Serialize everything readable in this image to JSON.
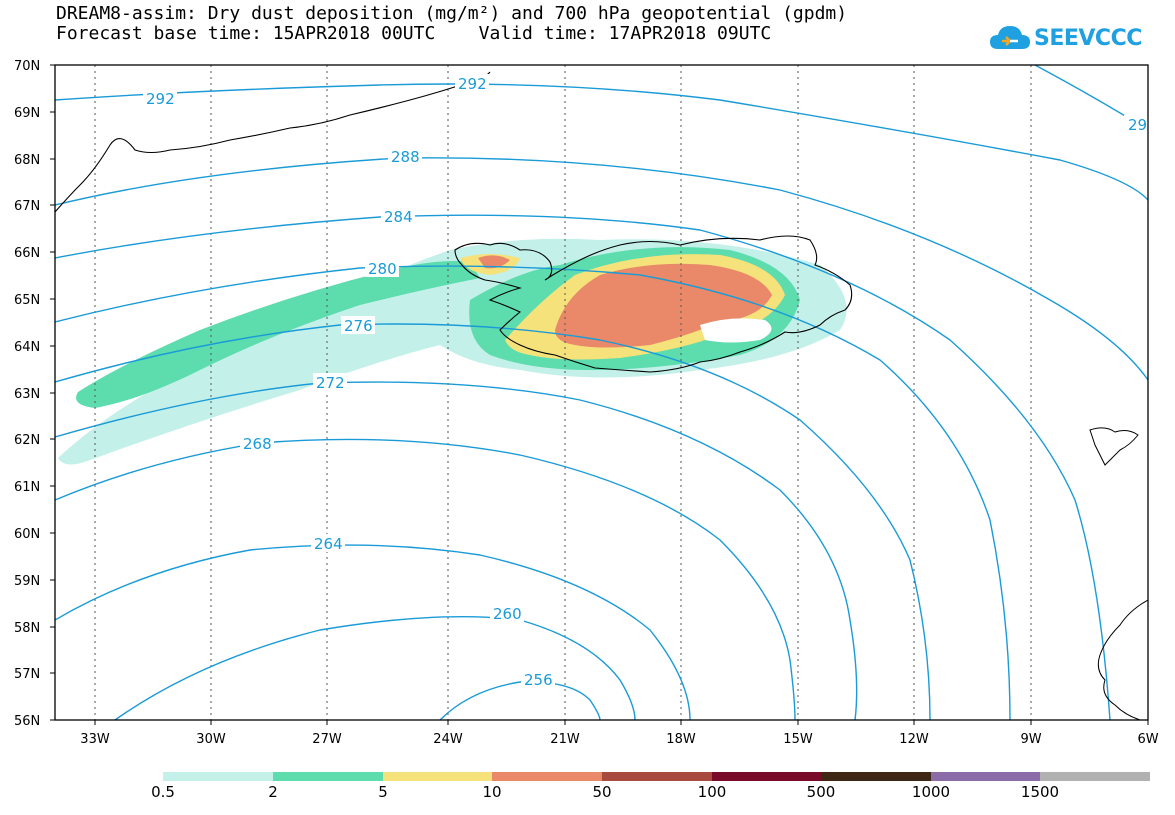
{
  "header": {
    "title_line1": "DREAM8-assim: Dry dust deposition (mg/m²) and 700 hPa geopotential (gpdm)",
    "title_line2": "Forecast base time: 15APR2018 00UTC    Valid time: 17APR2018 09UTC"
  },
  "logo": {
    "text": "SEEVCCC",
    "icon": "cloud-icon"
  },
  "map": {
    "lat_labels": [
      "70N",
      "69N",
      "68N",
      "67N",
      "66N",
      "65N",
      "64N",
      "63N",
      "62N",
      "61N",
      "60N",
      "59N",
      "58N",
      "57N",
      "56N"
    ],
    "lon_labels": [
      "33W",
      "30W",
      "27W",
      "24W",
      "21W",
      "18W",
      "15W",
      "12W",
      "9W",
      "6W"
    ],
    "contour_labels": [
      "292",
      "292",
      "29",
      "288",
      "284",
      "280",
      "276",
      "272",
      "268",
      "264",
      "260",
      "256"
    ],
    "colors": {
      "contour": "#1a9bd7",
      "coast": "#000000"
    }
  },
  "legend": {
    "thresholds": [
      "0.5",
      "2",
      "5",
      "10",
      "50",
      "100",
      "500",
      "1000",
      "1500"
    ],
    "colors": [
      "#c4f0ea",
      "#5ddcae",
      "#f6e27a",
      "#e9896a",
      "#a84b3e",
      "#7a0a2a",
      "#3e2614",
      "#8c6ca8",
      "#b1b1b1"
    ]
  }
}
